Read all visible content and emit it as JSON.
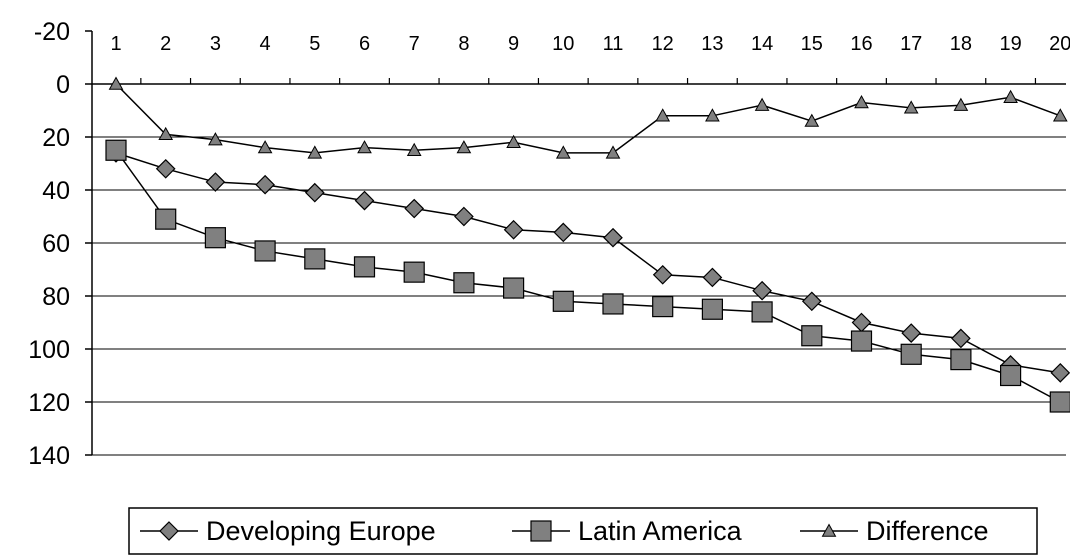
{
  "chart_data": {
    "type": "line",
    "title": "",
    "xlabel": "",
    "ylabel": "",
    "x": [
      1,
      2,
      3,
      4,
      5,
      6,
      7,
      8,
      9,
      10,
      11,
      12,
      13,
      14,
      15,
      16,
      17,
      18,
      19,
      20
    ],
    "x_tick_labels": [
      "1",
      "2",
      "3",
      "4",
      "5",
      "6",
      "7",
      "8",
      "9",
      "10",
      "11",
      "12",
      "13",
      "14",
      "15",
      "16",
      "17",
      "18",
      "19",
      "20"
    ],
    "x_axis_position": "top",
    "ylim": [
      -20,
      140
    ],
    "y_inverted": true,
    "y_ticks": [
      -20,
      0,
      20,
      40,
      60,
      80,
      100,
      120,
      140
    ],
    "y_tick_labels": [
      "-20",
      "0",
      "20",
      "40",
      "60",
      "80",
      "100",
      "120",
      "140"
    ],
    "grid": "horizontal",
    "legend_position": "bottom",
    "series": [
      {
        "name": "Developing Europe",
        "marker": "diamond",
        "color": "#808080",
        "values": [
          26,
          32,
          37,
          38,
          41,
          44,
          47,
          50,
          55,
          56,
          58,
          72,
          73,
          78,
          82,
          90,
          94,
          96,
          106,
          109
        ]
      },
      {
        "name": "Latin America",
        "marker": "square",
        "color": "#808080",
        "values": [
          25,
          51,
          58,
          63,
          66,
          69,
          71,
          75,
          77,
          82,
          83,
          84,
          85,
          86,
          95,
          97,
          102,
          104,
          110,
          120
        ]
      },
      {
        "name": "Difference",
        "marker": "triangle",
        "color": "#808080",
        "values": [
          0,
          19,
          21,
          24,
          26,
          24,
          25,
          24,
          22,
          26,
          26,
          12,
          12,
          8,
          14,
          7,
          9,
          8,
          5,
          12
        ]
      }
    ]
  }
}
